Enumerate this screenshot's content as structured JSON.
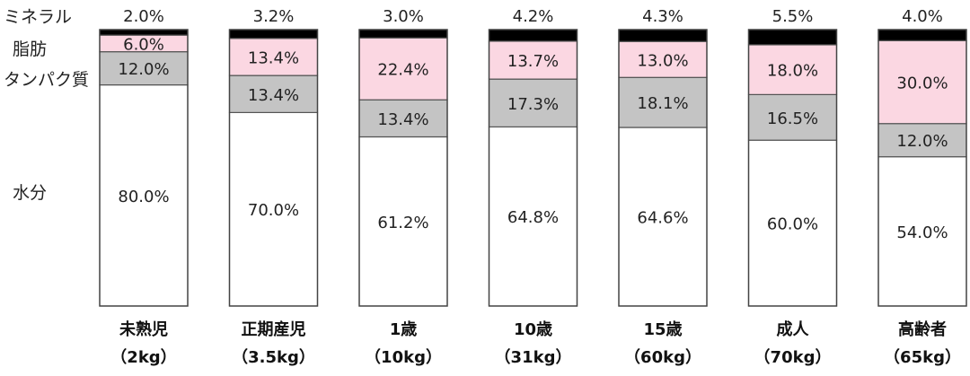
{
  "chart_data": {
    "type": "bar",
    "stacked": true,
    "normalized": true,
    "ylim": [
      0,
      100
    ],
    "unit": "%",
    "categories": [
      {
        "name": "未熟児",
        "sub": "（2kg）"
      },
      {
        "name": "正期産児",
        "sub": "（3.5kg）"
      },
      {
        "name": "1歳",
        "sub": "（10kg）"
      },
      {
        "name": "10歳",
        "sub": "（31kg）"
      },
      {
        "name": "15歳",
        "sub": "（60kg）"
      },
      {
        "name": "成人",
        "sub": "（70kg）"
      },
      {
        "name": "高齢者",
        "sub": "（65kg）"
      }
    ],
    "series": [
      {
        "name": "水分",
        "color": "#ffffff",
        "values": [
          80.0,
          70.0,
          61.2,
          64.8,
          64.6,
          60.0,
          54.0
        ],
        "labels": [
          "80.0%",
          "70.0%",
          "61.2%",
          "64.8%",
          "64.6%",
          "60.0%",
          "54.0%"
        ]
      },
      {
        "name": "タンパク質",
        "color": "#c4c4c4",
        "values": [
          12.0,
          13.4,
          13.4,
          17.3,
          18.1,
          16.5,
          12.0
        ],
        "labels": [
          "12.0%",
          "13.4%",
          "13.4%",
          "17.3%",
          "18.1%",
          "16.5%",
          "12.0%"
        ]
      },
      {
        "name": "脂肪",
        "color": "#fbd7e2",
        "values": [
          6.0,
          13.4,
          22.4,
          13.7,
          13.0,
          18.0,
          30.0
        ],
        "labels": [
          "6.0%",
          "13.4%",
          "22.4%",
          "13.7%",
          "13.0%",
          "18.0%",
          "30.0%"
        ]
      },
      {
        "name": "ミネラル",
        "color": "#000000",
        "values": [
          2.0,
          3.2,
          3.0,
          4.2,
          4.3,
          5.5,
          4.0
        ],
        "labels": [
          "2.0%",
          "3.2%",
          "3.0%",
          "4.2%",
          "4.3%",
          "5.5%",
          "4.0%"
        ]
      }
    ],
    "legend": "left",
    "grid": false
  }
}
